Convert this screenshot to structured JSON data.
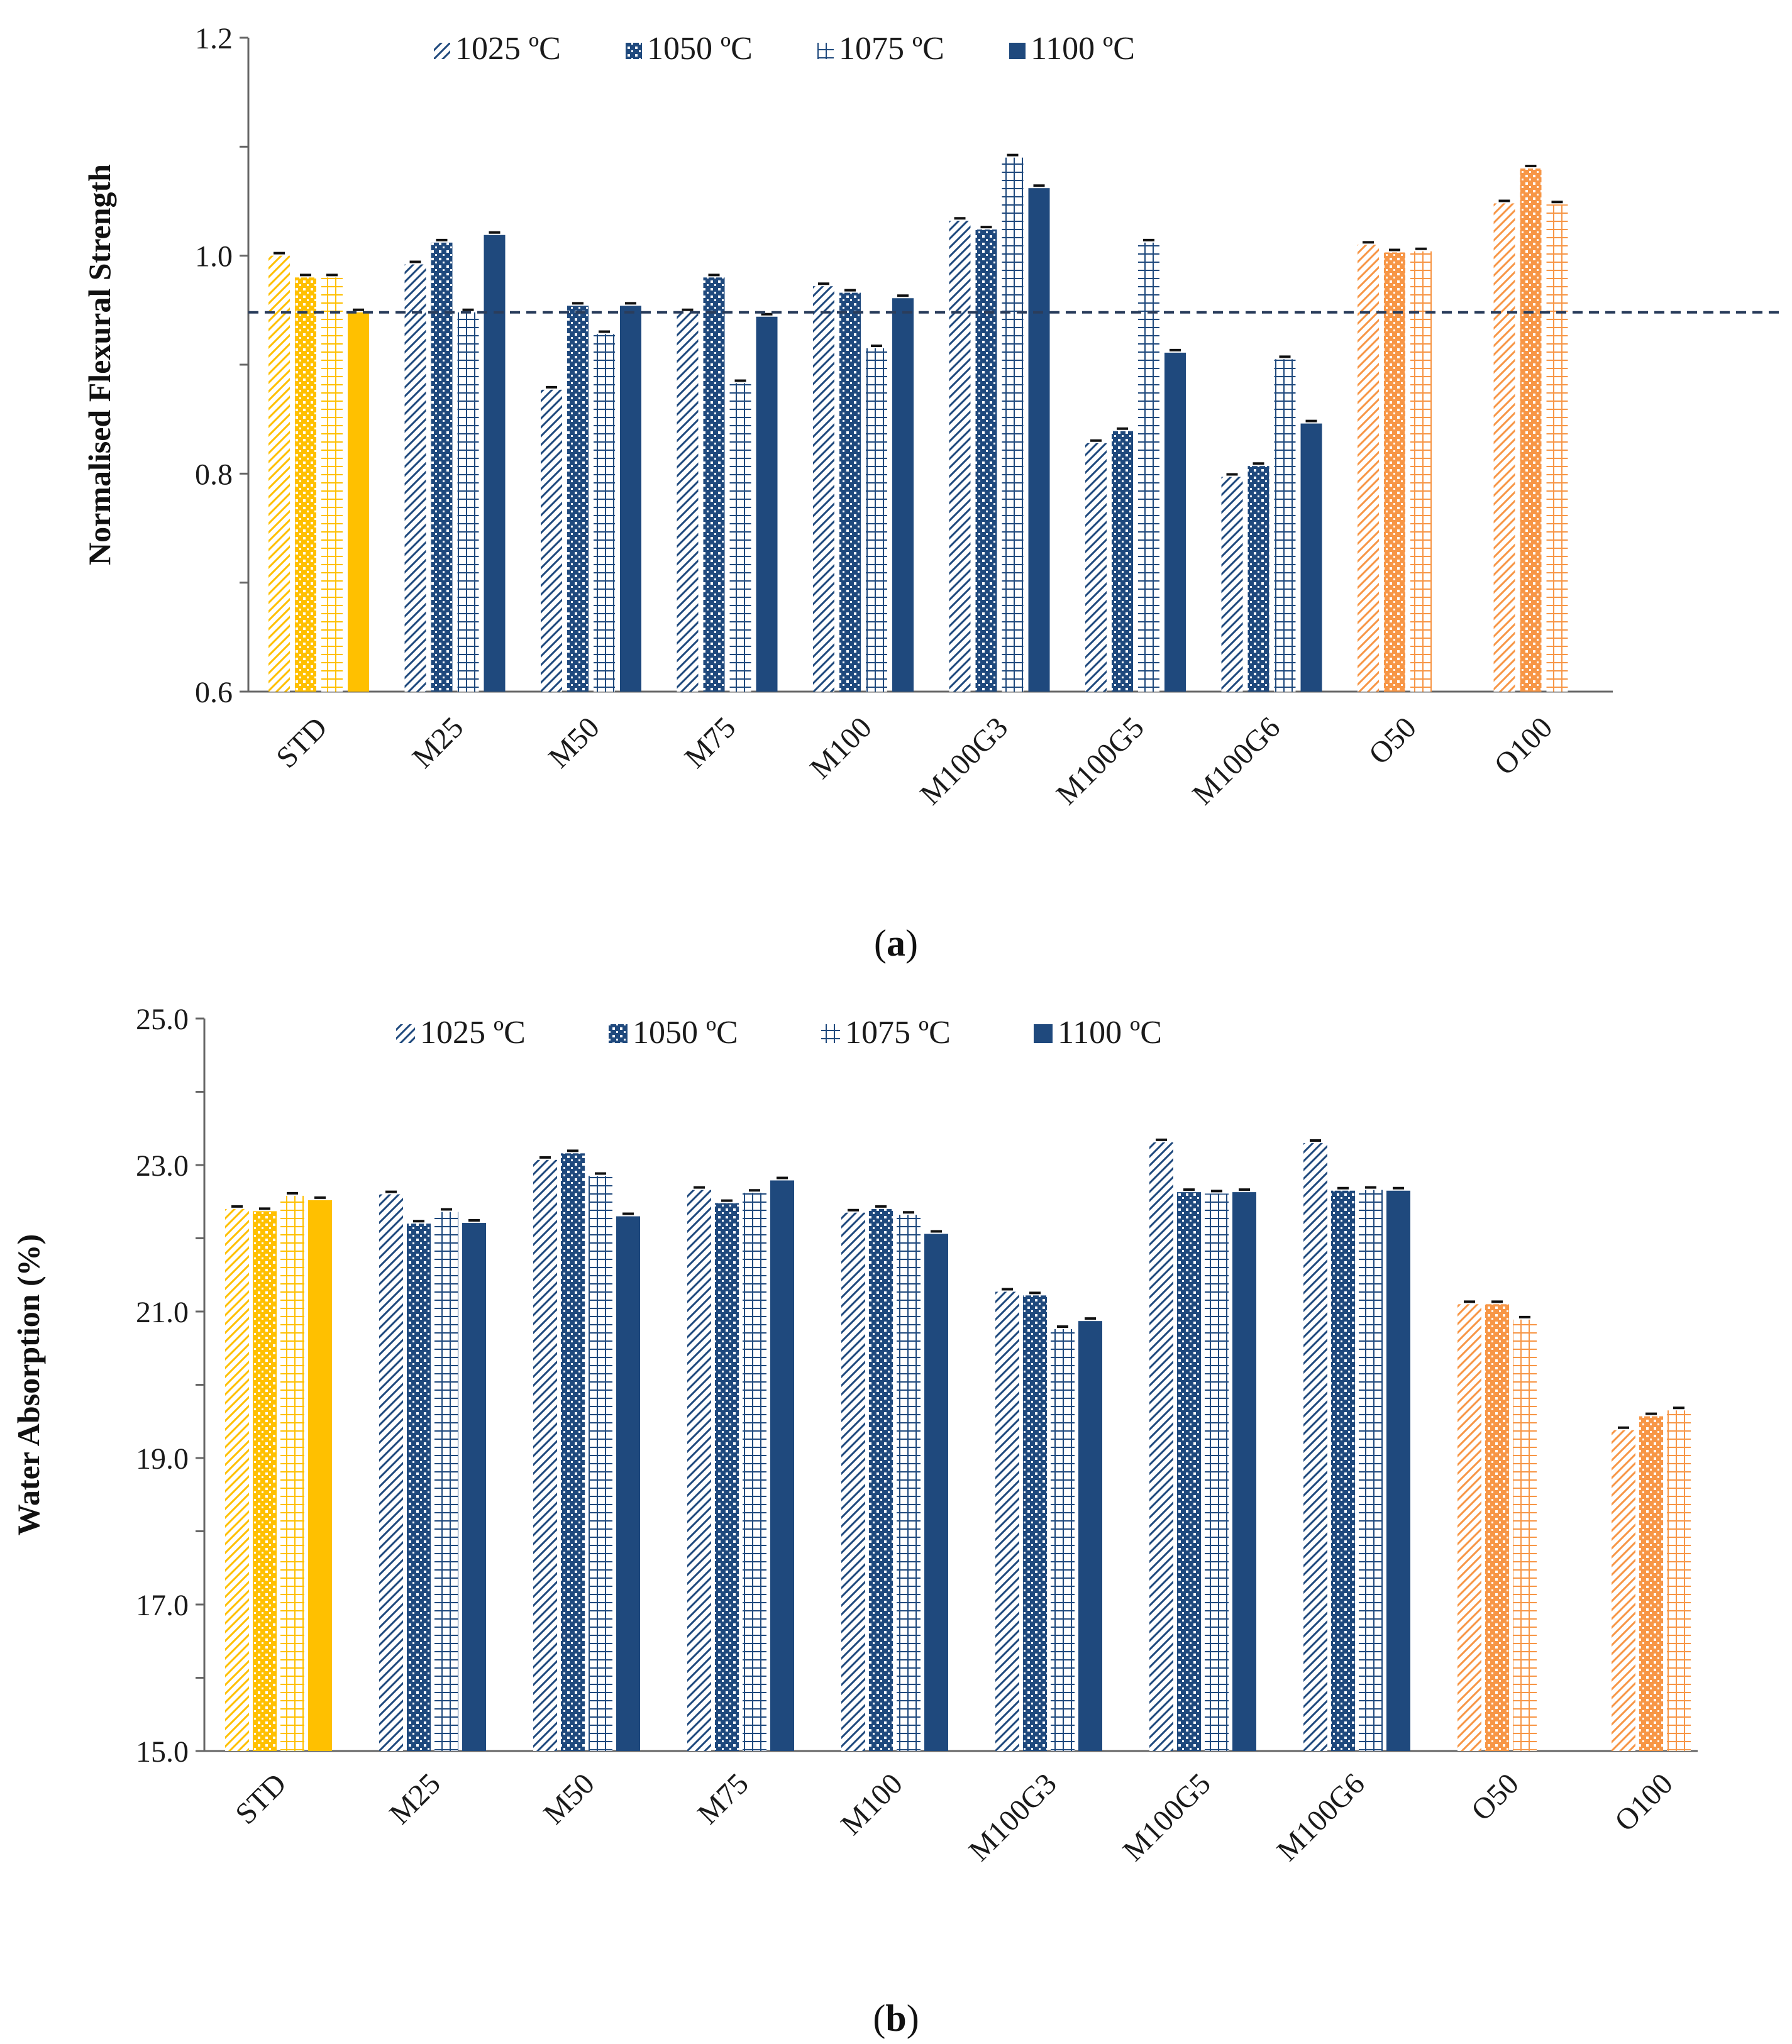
{
  "figure": {
    "panel_a_caption": {
      "open": "(",
      "letter": "a",
      "close": ")"
    },
    "panel_b_caption": {
      "open": "(",
      "letter": "b",
      "close": ")"
    }
  },
  "colors": {
    "navy": "#1f497d",
    "yellow": "#ffc000",
    "orange": "#f79646",
    "axis": "#666666",
    "dashed": "#2a3d5c"
  },
  "chart_data": [
    {
      "id": "panel-a",
      "type": "bar",
      "title": "",
      "xlabel": "",
      "ylabel": "Normalised Flexural Strength",
      "ylim": [
        0.6,
        1.2
      ],
      "major_ticks": [
        0.6,
        0.8,
        1.0,
        1.2
      ],
      "minor_step": 0.1,
      "tick_decimals": 1,
      "reference_line": 0.948,
      "legend": [
        "1025 ºC",
        "1050 ºC",
        "1075 ºC",
        "1100 ºC"
      ],
      "categories": [
        "STD",
        "M25",
        "M50",
        "M75",
        "M100",
        "M100G3",
        "M100G5",
        "M100G6",
        "O50",
        "O100"
      ],
      "group_colors": [
        "yellow",
        "navy",
        "navy",
        "navy",
        "navy",
        "navy",
        "navy",
        "navy",
        "orange",
        "orange"
      ],
      "series": [
        {
          "name": "1025 ºC",
          "values": [
            1.0,
            0.992,
            0.877,
            0.948,
            0.972,
            1.032,
            0.828,
            0.797,
            1.01,
            1.048
          ]
        },
        {
          "name": "1050 ºC",
          "values": [
            0.98,
            1.012,
            0.954,
            0.98,
            0.966,
            1.024,
            0.839,
            0.807,
            1.003,
            1.08
          ]
        },
        {
          "name": "1075 ºC",
          "values": [
            0.98,
            0.948,
            0.928,
            0.883,
            0.915,
            1.09,
            1.012,
            0.905,
            1.004,
            1.047
          ]
        },
        {
          "name": "1100 ºC",
          "values": [
            0.948,
            1.019,
            0.954,
            0.944,
            0.961,
            1.062,
            0.911,
            0.846,
            null,
            null
          ]
        }
      ]
    },
    {
      "id": "panel-b",
      "type": "bar",
      "title": "",
      "xlabel": "",
      "ylabel": "Water Absorption (%)",
      "ylim": [
        15.0,
        25.0
      ],
      "major_ticks": [
        15.0,
        17.0,
        19.0,
        21.0,
        23.0,
        25.0
      ],
      "minor_step": 1.0,
      "tick_decimals": 1,
      "reference_line": null,
      "legend": [
        "1025 ºC",
        "1050 ºC",
        "1075 ºC",
        "1100 ºC"
      ],
      "categories": [
        "STD",
        "M25",
        "M50",
        "M75",
        "M100",
        "M100G3",
        "M100G5",
        "M100G6",
        "O50",
        "O100"
      ],
      "group_colors": [
        "yellow",
        "navy",
        "navy",
        "navy",
        "navy",
        "navy",
        "navy",
        "navy",
        "orange",
        "orange"
      ],
      "series": [
        {
          "name": "1025 ºC",
          "values": [
            22.4,
            22.6,
            23.07,
            22.66,
            22.35,
            21.27,
            23.31,
            23.3,
            21.1,
            19.38
          ]
        },
        {
          "name": "1050 ºC",
          "values": [
            22.37,
            22.2,
            23.16,
            22.48,
            22.4,
            21.22,
            22.63,
            22.65,
            21.1,
            19.57
          ]
        },
        {
          "name": "1075 ºC",
          "values": [
            22.58,
            22.36,
            22.85,
            22.62,
            22.32,
            20.76,
            22.61,
            22.66,
            20.89,
            19.65
          ]
        },
        {
          "name": "1100 ºC",
          "values": [
            22.52,
            22.21,
            22.3,
            22.79,
            22.06,
            20.87,
            22.63,
            22.65,
            null,
            null
          ]
        }
      ]
    }
  ]
}
